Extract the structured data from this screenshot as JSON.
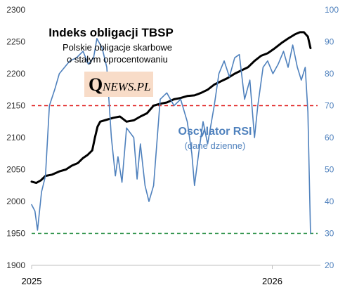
{
  "chart_data": [
    {
      "type": "line",
      "title": "Indeks obligacji TBSP",
      "subtitle_lines": [
        "Polskie obligacje skarbowe",
        "o stałym oprocentowaniu"
      ],
      "logo": {
        "letter": "Q",
        "rest": "NEWS.PL",
        "background": "#f8dcc8"
      },
      "x": {
        "ticks": [
          "2025",
          "2026"
        ],
        "tick_dates": [
          "2025-01-01",
          "2026-01-01"
        ],
        "range": [
          "2025-01-01",
          "2026-03-15"
        ]
      },
      "y_left": {
        "ticks": [
          1900,
          1950,
          2000,
          2050,
          2100,
          2150,
          2200,
          2250,
          2300
        ],
        "ylim": [
          1900,
          2300
        ]
      },
      "series": [
        {
          "color": "#000000",
          "axis": "left",
          "points": [
            [
              "2025-01-01",
              2031
            ],
            [
              "2025-01-08",
              2029
            ],
            [
              "2025-01-15",
              2033
            ],
            [
              "2025-01-22",
              2040
            ],
            [
              "2025-02-01",
              2042
            ],
            [
              "2025-02-12",
              2047
            ],
            [
              "2025-02-22",
              2050
            ],
            [
              "2025-03-03",
              2056
            ],
            [
              "2025-03-12",
              2060
            ],
            [
              "2025-03-20",
              2068
            ],
            [
              "2025-03-27",
              2073
            ],
            [
              "2025-04-03",
              2080
            ],
            [
              "2025-04-07",
              2100
            ],
            [
              "2025-04-11",
              2117
            ],
            [
              "2025-04-15",
              2125
            ],
            [
              "2025-04-25",
              2128
            ],
            [
              "2025-05-05",
              2131
            ],
            [
              "2025-05-15",
              2133
            ],
            [
              "2025-05-25",
              2125
            ],
            [
              "2025-06-05",
              2127
            ],
            [
              "2025-06-15",
              2133
            ],
            [
              "2025-06-25",
              2138
            ],
            [
              "2025-07-05",
              2150
            ],
            [
              "2025-07-15",
              2153
            ],
            [
              "2025-07-25",
              2155
            ],
            [
              "2025-08-05",
              2160
            ],
            [
              "2025-08-15",
              2162
            ],
            [
              "2025-08-25",
              2165
            ],
            [
              "2025-09-05",
              2166
            ],
            [
              "2025-09-15",
              2170
            ],
            [
              "2025-09-25",
              2175
            ],
            [
              "2025-10-05",
              2183
            ],
            [
              "2025-10-15",
              2188
            ],
            [
              "2025-10-25",
              2193
            ],
            [
              "2025-11-05",
              2200
            ],
            [
              "2025-11-15",
              2205
            ],
            [
              "2025-11-25",
              2210
            ],
            [
              "2025-12-05",
              2220
            ],
            [
              "2025-12-15",
              2228
            ],
            [
              "2025-12-25",
              2232
            ],
            [
              "2026-01-05",
              2240
            ],
            [
              "2026-01-15",
              2248
            ],
            [
              "2026-01-25",
              2255
            ],
            [
              "2026-02-05",
              2262
            ],
            [
              "2026-02-12",
              2265
            ],
            [
              "2026-02-18",
              2265
            ],
            [
              "2026-02-24",
              2258
            ],
            [
              "2026-02-28",
              2240
            ]
          ]
        },
        {
          "name": "Oscylator RSI",
          "color": "#4f81bd",
          "axis": "right",
          "points": [
            [
              "2025-01-01",
              39
            ],
            [
              "2025-01-06",
              37
            ],
            [
              "2025-01-10",
              31
            ],
            [
              "2025-01-16",
              43
            ],
            [
              "2025-01-22",
              48
            ],
            [
              "2025-01-28",
              70
            ],
            [
              "2025-02-05",
              75
            ],
            [
              "2025-02-12",
              80
            ],
            [
              "2025-02-20",
              82
            ],
            [
              "2025-02-28",
              84
            ],
            [
              "2025-03-10",
              85
            ],
            [
              "2025-03-20",
              87
            ],
            [
              "2025-03-28",
              83
            ],
            [
              "2025-04-05",
              85
            ],
            [
              "2025-04-10",
              91
            ],
            [
              "2025-04-18",
              88
            ],
            [
              "2025-04-25",
              82
            ],
            [
              "2025-05-02",
              60
            ],
            [
              "2025-05-08",
              48
            ],
            [
              "2025-05-12",
              54
            ],
            [
              "2025-05-18",
              46
            ],
            [
              "2025-05-25",
              63
            ],
            [
              "2025-06-05",
              60
            ],
            [
              "2025-06-10",
              47
            ],
            [
              "2025-06-15",
              58
            ],
            [
              "2025-06-22",
              45
            ],
            [
              "2025-06-28",
              40
            ],
            [
              "2025-07-05",
              45
            ],
            [
              "2025-07-15",
              72
            ],
            [
              "2025-07-25",
              74
            ],
            [
              "2025-08-05",
              70
            ],
            [
              "2025-08-15",
              72
            ],
            [
              "2025-08-25",
              65
            ],
            [
              "2025-09-01",
              55
            ],
            [
              "2025-09-05",
              45
            ],
            [
              "2025-09-12",
              56
            ],
            [
              "2025-09-18",
              65
            ],
            [
              "2025-09-25",
              58
            ],
            [
              "2025-10-05",
              70
            ],
            [
              "2025-10-12",
              80
            ],
            [
              "2025-10-20",
              84
            ],
            [
              "2025-10-28",
              79
            ],
            [
              "2025-11-05",
              85
            ],
            [
              "2025-11-12",
              86
            ],
            [
              "2025-11-20",
              72
            ],
            [
              "2025-11-28",
              78
            ],
            [
              "2025-12-05",
              60
            ],
            [
              "2025-12-10",
              70
            ],
            [
              "2025-12-18",
              82
            ],
            [
              "2025-12-25",
              84
            ],
            [
              "2026-01-02",
              80
            ],
            [
              "2026-01-10",
              83
            ],
            [
              "2026-01-18",
              87
            ],
            [
              "2026-01-25",
              82
            ],
            [
              "2026-02-01",
              89
            ],
            [
              "2026-02-08",
              82
            ],
            [
              "2026-02-14",
              78
            ],
            [
              "2026-02-20",
              82
            ],
            [
              "2026-02-24",
              68
            ],
            [
              "2026-02-28",
              30
            ]
          ]
        }
      ]
    },
    {
      "type": "line",
      "title": "Oscylator RSI",
      "subtitle": "(dane dzienne)",
      "y_right": {
        "ticks": [
          20,
          30,
          40,
          50,
          60,
          70,
          80,
          90,
          100
        ],
        "ylim": [
          20,
          100
        ],
        "color": "#4f81bd"
      },
      "reference_lines": [
        {
          "value": 70,
          "color": "#e02020",
          "style": "dashed"
        },
        {
          "value": 30,
          "color": "#1f8a3c",
          "style": "dashed"
        }
      ]
    }
  ]
}
